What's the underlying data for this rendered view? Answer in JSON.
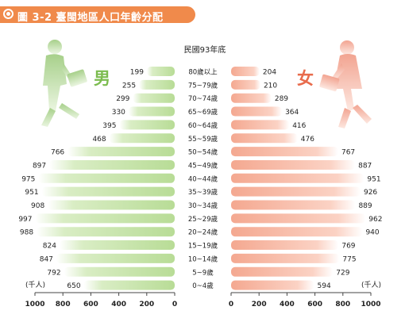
{
  "figure_label": "圖 3-2",
  "figure_title": "臺閩地區人口年齡分配",
  "chart_data": {
    "type": "bar",
    "subtitle": "民國93年底",
    "unit_label": "(千人)",
    "categories": [
      "80歲以上",
      "75~79歲",
      "70~74歲",
      "65~69歲",
      "60~64歲",
      "55~59歲",
      "50~54歲",
      "45~49歲",
      "40~44歲",
      "35~39歲",
      "30~34歲",
      "25~29歲",
      "20~24歲",
      "15~19歲",
      "10~14歲",
      "5~9歲",
      "0~4歲"
    ],
    "series": [
      {
        "name": "男",
        "values": [
          199,
          255,
          299,
          330,
          395,
          468,
          766,
          897,
          975,
          951,
          908,
          997,
          988,
          824,
          847,
          792,
          650
        ]
      },
      {
        "name": "女",
        "values": [
          204,
          210,
          289,
          364,
          416,
          476,
          767,
          887,
          951,
          926,
          889,
          962,
          940,
          769,
          775,
          729,
          594
        ]
      }
    ],
    "male_ticks": [
      "1000",
      "800",
      "600",
      "400",
      "200",
      "0"
    ],
    "female_ticks": [
      "0",
      "200",
      "400",
      "600",
      "800",
      "1000"
    ],
    "xlim": [
      0,
      1000
    ],
    "colors": {
      "title_bar": "#f08a4b",
      "male_bar": "#c5e3a8",
      "male_label": "#7cbc4f",
      "female_bar": "#f6b8a3",
      "female_label": "#e86b4c"
    }
  }
}
